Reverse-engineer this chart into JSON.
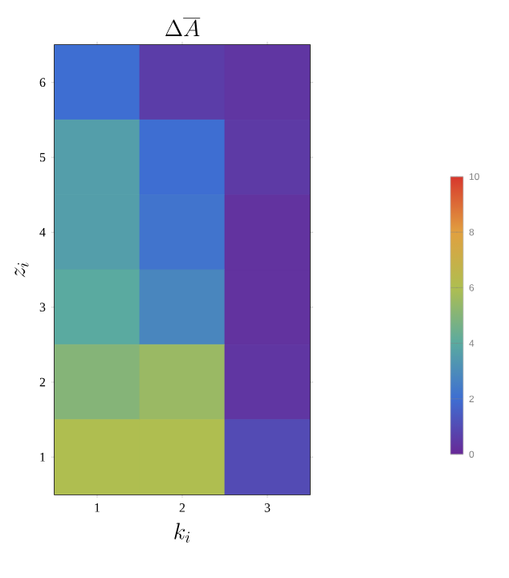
{
  "chart_data": {
    "type": "heatmap",
    "title": "\\Delta\\overline{A}",
    "xlabel": "k_i",
    "ylabel": "z_i",
    "categories": [
      "1",
      "2",
      "3"
    ],
    "y_categories": [
      "6",
      "5",
      "4",
      "3",
      "2",
      "1"
    ],
    "cells": [
      [
        2.0,
        0.6,
        0.4
      ],
      [
        3.6,
        2.0,
        0.5
      ],
      [
        3.6,
        2.2,
        0.3
      ],
      [
        4.0,
        2.8,
        0.3
      ],
      [
        5.0,
        5.5,
        0.4
      ],
      [
        6.0,
        6.0,
        1.0
      ]
    ],
    "clim": [
      0,
      10
    ],
    "cticks": [
      0,
      2,
      4,
      6,
      8,
      10
    ]
  }
}
